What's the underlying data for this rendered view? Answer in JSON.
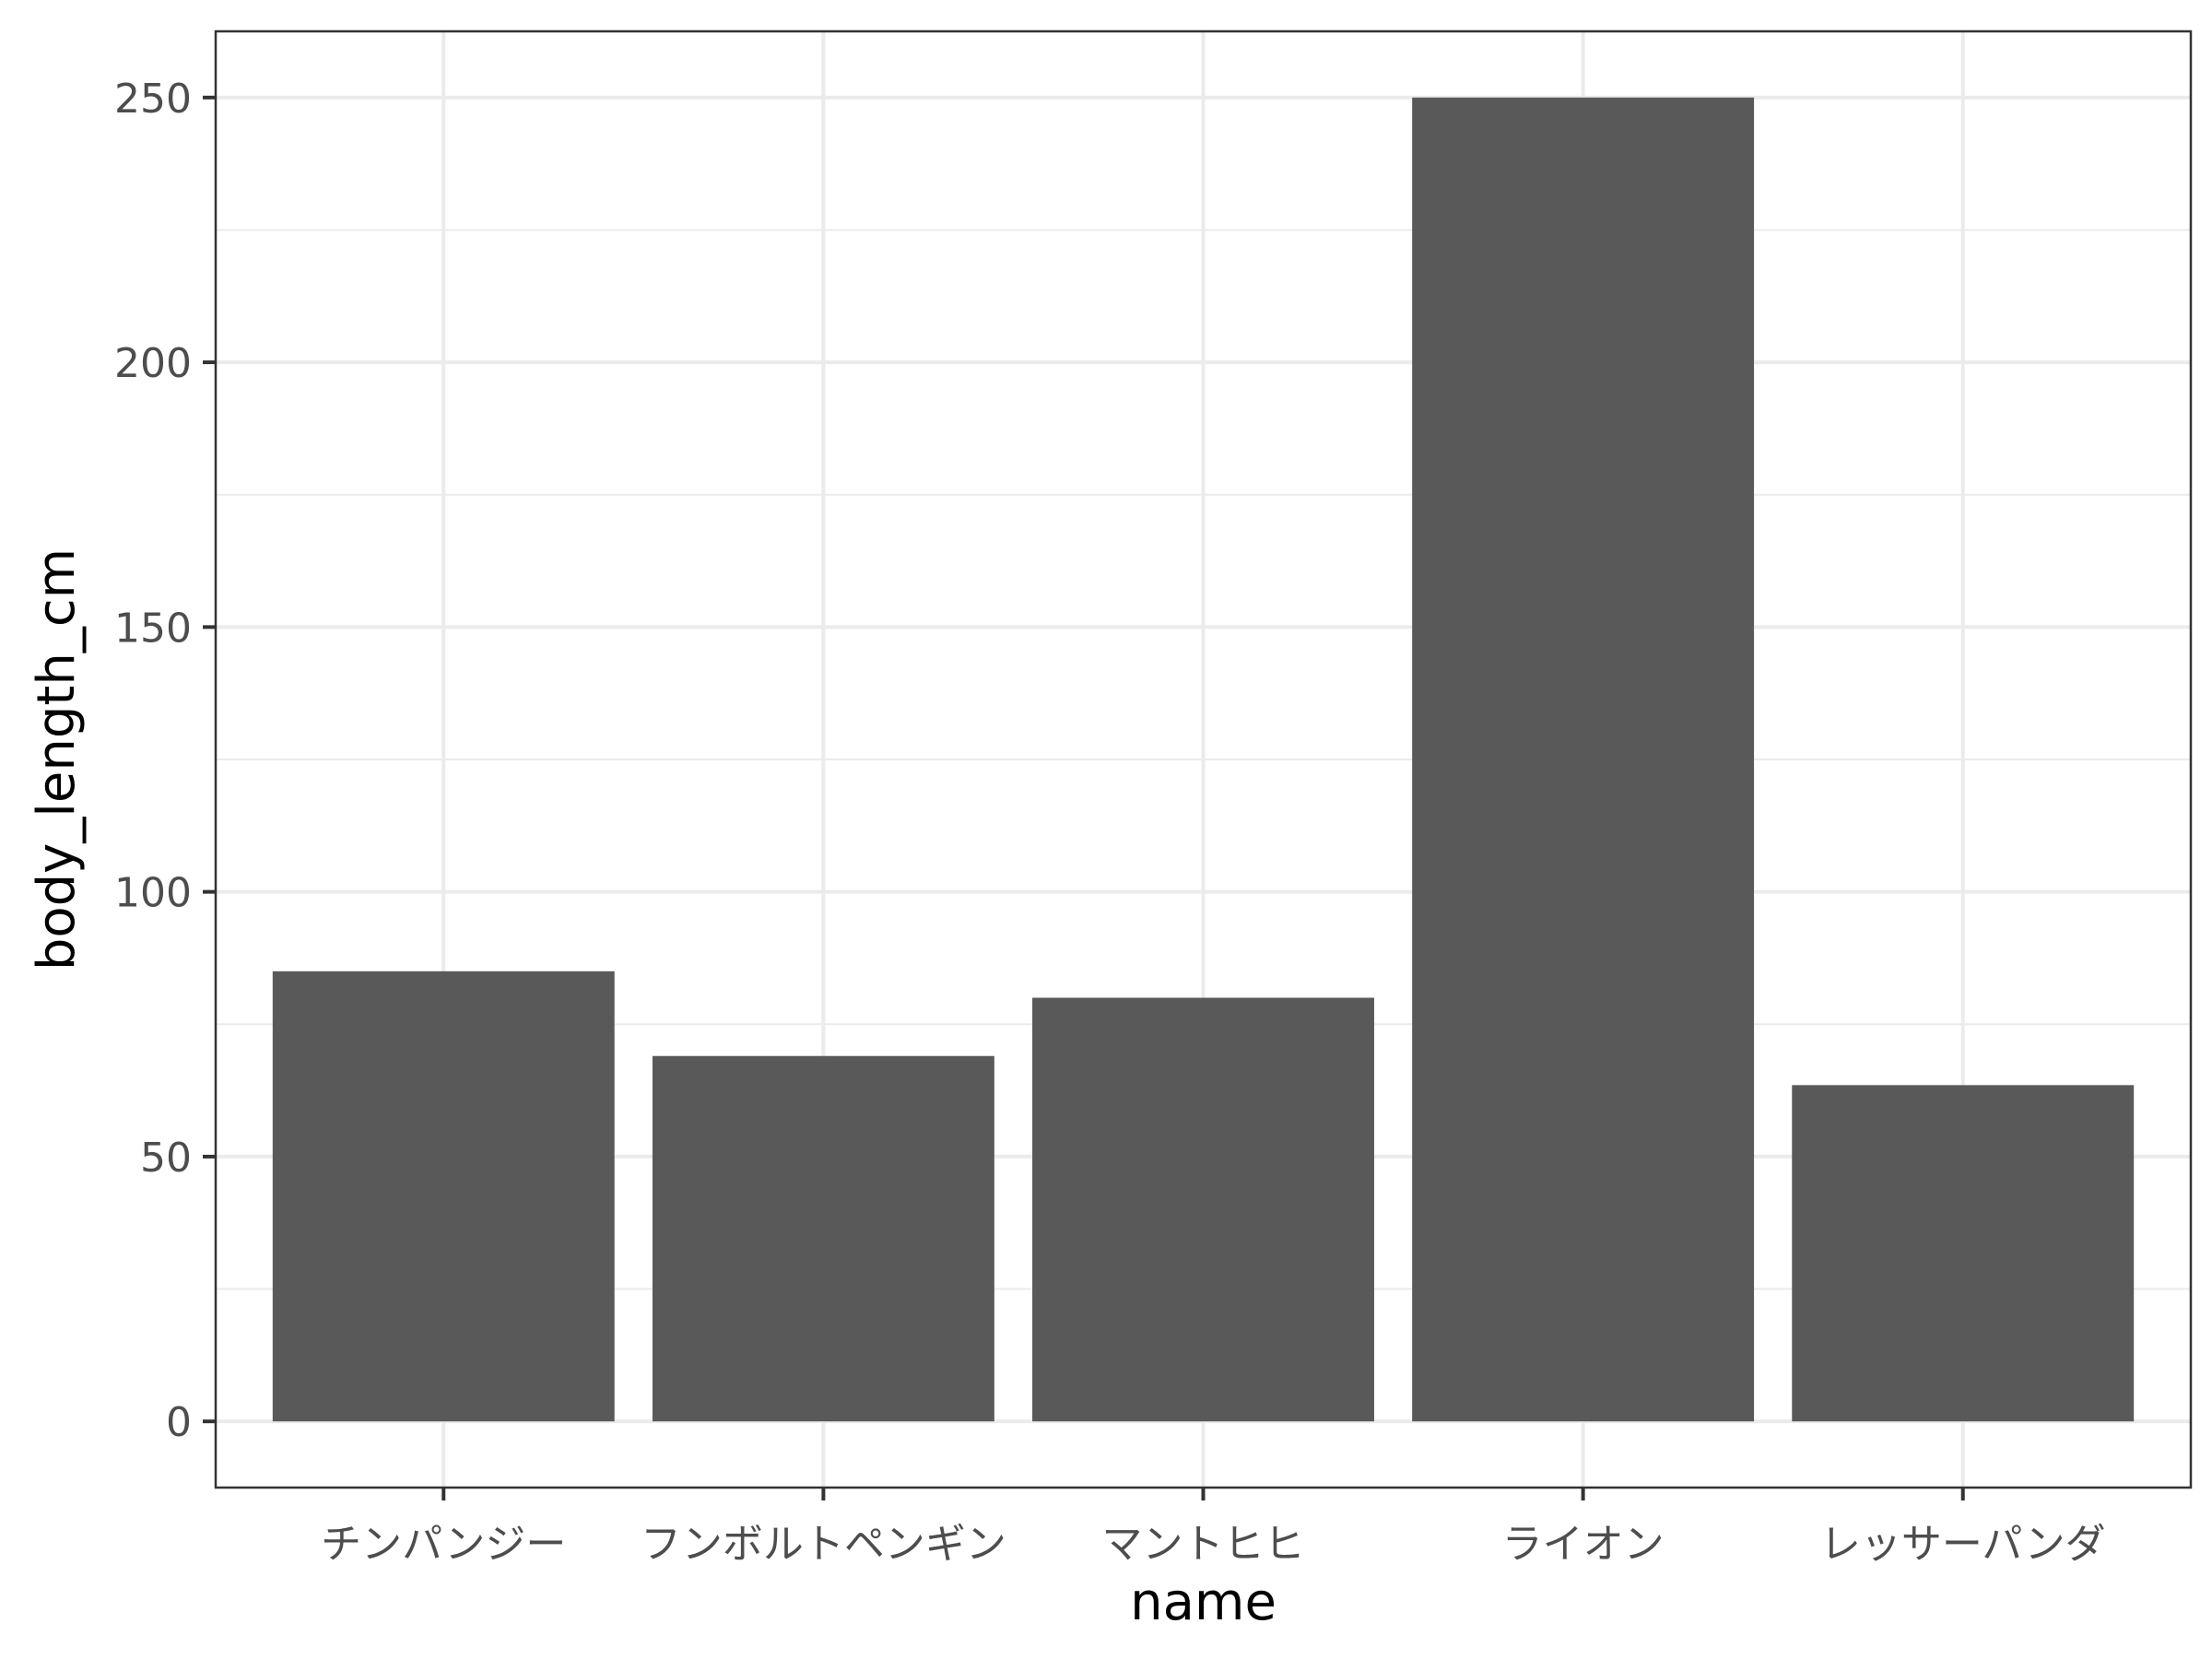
{
  "chart_data": {
    "type": "bar",
    "categories": [
      "チンパンジー",
      "フンボルトペンギン",
      "マントヒヒ",
      "ライオン",
      "レッサーパンダ"
    ],
    "values": [
      85,
      69,
      80,
      250,
      63.5
    ],
    "xlabel": "name",
    "ylabel": "body_length_cm",
    "ylim": [
      -12.5,
      262.5
    ],
    "yticks": [
      0,
      50,
      100,
      150,
      200,
      250
    ],
    "grid": true,
    "bar_color": "#595959",
    "grid_color": "#ebebeb",
    "panel_border_color": "#333333"
  }
}
